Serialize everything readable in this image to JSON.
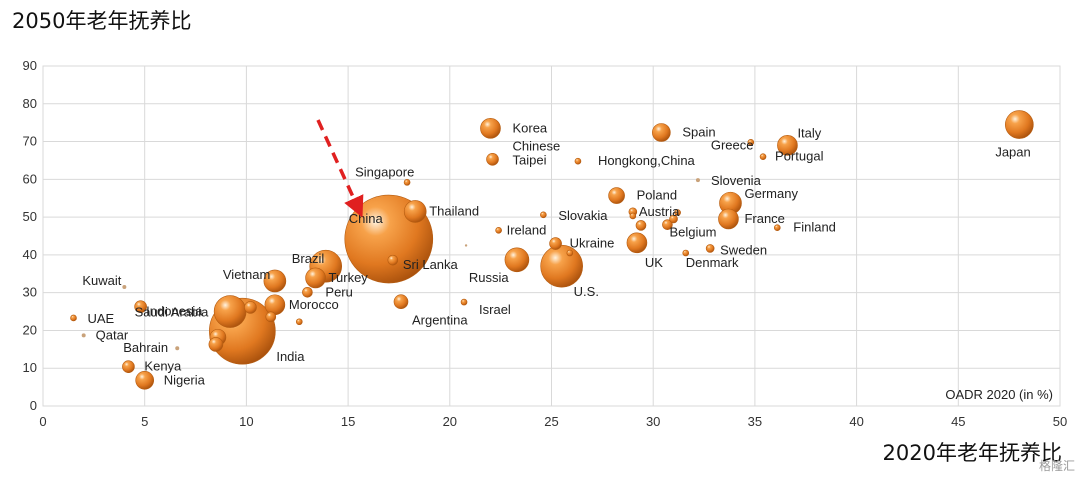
{
  "chart_data": {
    "type": "scatter",
    "title": "2050年老年抚养比",
    "xlabel": "2020年老年抚养比",
    "annotation": "OADR 2020 (in %)",
    "xlim": [
      0,
      50
    ],
    "ylim": [
      0,
      90
    ],
    "xticks": [
      0,
      5,
      10,
      15,
      20,
      25,
      30,
      35,
      40,
      45,
      50
    ],
    "yticks": [
      0,
      10,
      20,
      30,
      40,
      50,
      60,
      70,
      80,
      90
    ],
    "grid": true,
    "bubble_color": "#e07820",
    "points": [
      {
        "label": "Japan",
        "x": 48.0,
        "y": 74.5,
        "size": 14
      },
      {
        "label": "Italy",
        "x": 36.6,
        "y": 69.0,
        "size": 10
      },
      {
        "label": "Greece",
        "x": 34.8,
        "y": 69.8,
        "size": 3
      },
      {
        "label": "Portugal",
        "x": 35.4,
        "y": 66.0,
        "size": 3
      },
      {
        "label": "Spain",
        "x": 30.4,
        "y": 72.4,
        "size": 9
      },
      {
        "label": "Korea",
        "x": 22.0,
        "y": 73.5,
        "size": 10
      },
      {
        "label": "Chinese Taipei",
        "x": 22.1,
        "y": 65.3,
        "size": 6
      },
      {
        "label": "Hongkong,China",
        "x": 26.3,
        "y": 64.8,
        "size": 3
      },
      {
        "label": "Slovenia",
        "x": 32.2,
        "y": 59.8,
        "size": 2
      },
      {
        "label": "Germany",
        "x": 33.8,
        "y": 53.7,
        "size": 11
      },
      {
        "label": "France",
        "x": 33.7,
        "y": 49.5,
        "size": 10
      },
      {
        "label": "Finland",
        "x": 36.1,
        "y": 47.2,
        "size": 3
      },
      {
        "label": "Poland",
        "x": 28.2,
        "y": 55.7,
        "size": 8
      },
      {
        "label": "Austria",
        "x": 29.0,
        "y": 51.4,
        "size": 4
      },
      {
        "label": "Belgium",
        "x": 30.7,
        "y": 48.0,
        "size": 5
      },
      {
        "label": "Sweden",
        "x": 32.8,
        "y": 41.7,
        "size": 4
      },
      {
        "label": "Denmark",
        "x": 31.6,
        "y": 40.5,
        "size": 3
      },
      {
        "label": "UK",
        "x": 29.2,
        "y": 43.2,
        "size": 10
      },
      {
        "label": "Slovakia",
        "x": 24.6,
        "y": 50.6,
        "size": 3
      },
      {
        "label": "Ukraine",
        "x": 25.2,
        "y": 43.0,
        "size": 6
      },
      {
        "label": "Ireland",
        "x": 22.4,
        "y": 46.5,
        "size": 3
      },
      {
        "label": "U.S.",
        "x": 25.5,
        "y": 37.0,
        "size": 21
      },
      {
        "label": "Russia",
        "x": 23.3,
        "y": 38.7,
        "size": 12
      },
      {
        "label": "Israel",
        "x": 20.7,
        "y": 27.5,
        "size": 3
      },
      {
        "label": "Argentina",
        "x": 17.6,
        "y": 27.6,
        "size": 7
      },
      {
        "label": "Singapore",
        "x": 17.9,
        "y": 59.2,
        "size": 3
      },
      {
        "label": "Thailand",
        "x": 18.3,
        "y": 51.5,
        "size": 11
      },
      {
        "label": "Sri Lanka",
        "x": 17.2,
        "y": 38.6,
        "size": 5
      },
      {
        "label": "China",
        "x": 17.0,
        "y": 44.2,
        "size": 44
      },
      {
        "label": "Brazil",
        "x": 13.9,
        "y": 37.0,
        "size": 16
      },
      {
        "label": "Turkey",
        "x": 13.4,
        "y": 33.9,
        "size": 10
      },
      {
        "label": "Peru",
        "x": 13.0,
        "y": 30.1,
        "size": 5
      },
      {
        "label": "Vietnam",
        "x": 11.4,
        "y": 33.1,
        "size": 11
      },
      {
        "label": "Morocco",
        "x": 11.4,
        "y": 26.8,
        "size": 10
      },
      {
        "label": "India",
        "x": 9.8,
        "y": 19.8,
        "size": 33
      },
      {
        "label": "Indonesia",
        "x": 9.2,
        "y": 25.0,
        "size": 16
      },
      {
        "label": "Saudi Arabia",
        "x": 4.8,
        "y": 26.3,
        "size": 6
      },
      {
        "label": "Kuwait",
        "x": 4.0,
        "y": 31.5,
        "size": 2
      },
      {
        "label": "UAE",
        "x": 1.5,
        "y": 23.3,
        "size": 3
      },
      {
        "label": "Qatar",
        "x": 2.0,
        "y": 18.7,
        "size": 2
      },
      {
        "label": "Bahrain",
        "x": 6.6,
        "y": 15.3,
        "size": 2
      },
      {
        "label": "Kenya",
        "x": 4.2,
        "y": 10.4,
        "size": 6
      },
      {
        "label": "Nigeria",
        "x": 5.0,
        "y": 6.8,
        "size": 9
      },
      {
        "label": "",
        "x": 8.5,
        "y": 16.3,
        "size": 7
      },
      {
        "label": "",
        "x": 8.6,
        "y": 18.2,
        "size": 8
      },
      {
        "label": "",
        "x": 10.2,
        "y": 26.1,
        "size": 6
      },
      {
        "label": "",
        "x": 11.2,
        "y": 23.6,
        "size": 5
      },
      {
        "label": "",
        "x": 12.6,
        "y": 22.3,
        "size": 3
      },
      {
        "label": "",
        "x": 25.9,
        "y": 40.5,
        "size": 3
      },
      {
        "label": "",
        "x": 20.8,
        "y": 42.5,
        "size": 1
      },
      {
        "label": "",
        "x": 29.4,
        "y": 47.8,
        "size": 5
      },
      {
        "label": "",
        "x": 31.0,
        "y": 49.5,
        "size": 4
      },
      {
        "label": "",
        "x": 31.2,
        "y": 51.2,
        "size": 3
      },
      {
        "label": "",
        "x": 29.0,
        "y": 50.3,
        "size": 3
      }
    ]
  },
  "watermark": "格隆汇"
}
